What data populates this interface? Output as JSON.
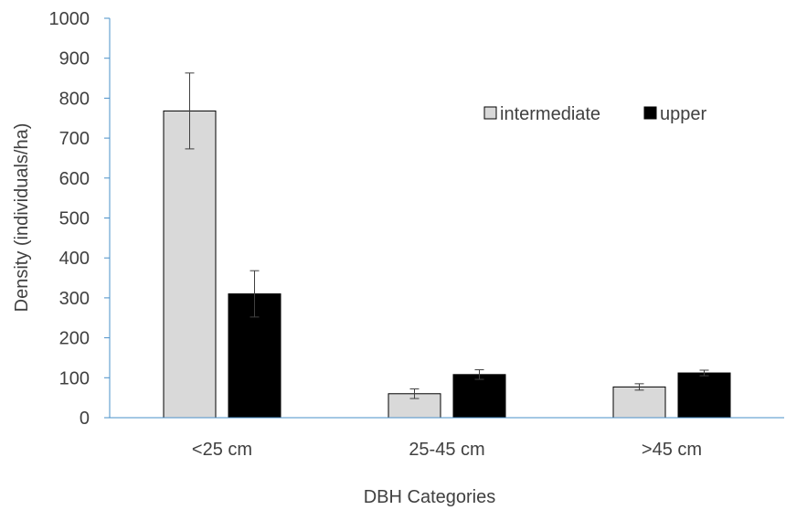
{
  "chart_data": {
    "type": "bar",
    "title": "",
    "xlabel": "DBH Categories",
    "ylabel": "Density (individuals/ha)",
    "ylim": [
      0,
      1000
    ],
    "yticks": [
      "0",
      "100",
      "200",
      "300",
      "400",
      "500",
      "600",
      "700",
      "800",
      "900",
      "1000"
    ],
    "categories": [
      "<25 cm",
      "25-45 cm",
      ">45 cm"
    ],
    "series": [
      {
        "name": "intermediate",
        "color": "#d9d9d9",
        "values": [
          768,
          60,
          77
        ],
        "errors": [
          95,
          12,
          8
        ]
      },
      {
        "name": "upper",
        "color": "#000000",
        "values": [
          310,
          108,
          112
        ],
        "errors": [
          58,
          12,
          7
        ]
      }
    ],
    "legend_position": "top-right",
    "grid": false
  }
}
